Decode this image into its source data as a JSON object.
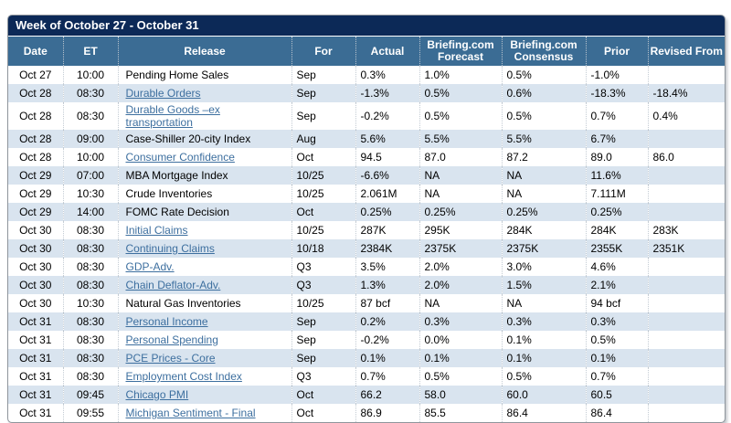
{
  "title": "Week of October 27 - October 31",
  "columns": [
    "Date",
    "ET",
    "Release",
    "For",
    "Actual",
    "Briefing.com Forecast",
    "Briefing.com Consensus",
    "Prior",
    "Revised From"
  ],
  "colors": {
    "title_bar": "#0c2957",
    "header_bg": "#3b6c94",
    "row_alt": "#d9e4ef",
    "link": "#3d6f9f"
  },
  "rows": [
    {
      "date": "Oct 27",
      "et": "10:00",
      "release": "Pending Home Sales",
      "link": false,
      "for": "Sep",
      "actual": "0.3%",
      "forecast": "1.0%",
      "consensus": "0.5%",
      "prior": "-1.0%",
      "revised": ""
    },
    {
      "date": "Oct 28",
      "et": "08:30",
      "release": "Durable Orders",
      "link": true,
      "for": "Sep",
      "actual": "-1.3%",
      "forecast": "0.5%",
      "consensus": "0.6%",
      "prior": "-18.3%",
      "revised": "-18.4%"
    },
    {
      "date": "Oct 28",
      "et": "08:30",
      "release": "Durable Goods –ex transportation",
      "link": true,
      "for": "Sep",
      "actual": "-0.2%",
      "forecast": "0.5%",
      "consensus": "0.5%",
      "prior": "0.7%",
      "revised": "0.4%"
    },
    {
      "date": "Oct 28",
      "et": "09:00",
      "release": "Case-Shiller 20-city Index",
      "link": false,
      "for": "Aug",
      "actual": "5.6%",
      "forecast": "5.5%",
      "consensus": "5.5%",
      "prior": "6.7%",
      "revised": ""
    },
    {
      "date": "Oct 28",
      "et": "10:00",
      "release": "Consumer Confidence",
      "link": true,
      "for": "Oct",
      "actual": "94.5",
      "forecast": "87.0",
      "consensus": "87.2",
      "prior": "89.0",
      "revised": "86.0"
    },
    {
      "date": "Oct 29",
      "et": "07:00",
      "release": "MBA Mortgage Index",
      "link": false,
      "for": "10/25",
      "actual": "-6.6%",
      "forecast": "NA",
      "consensus": "NA",
      "prior": "11.6%",
      "revised": ""
    },
    {
      "date": "Oct 29",
      "et": "10:30",
      "release": "Crude Inventories",
      "link": false,
      "for": "10/25",
      "actual": "2.061M",
      "forecast": "NA",
      "consensus": "NA",
      "prior": "7.111M",
      "revised": ""
    },
    {
      "date": "Oct 29",
      "et": "14:00",
      "release": "FOMC Rate Decision",
      "link": false,
      "for": "Oct",
      "actual": "0.25%",
      "forecast": "0.25%",
      "consensus": "0.25%",
      "prior": "0.25%",
      "revised": ""
    },
    {
      "date": "Oct 30",
      "et": "08:30",
      "release": "Initial Claims",
      "link": true,
      "for": "10/25",
      "actual": "287K",
      "forecast": "295K",
      "consensus": "284K",
      "prior": "284K",
      "revised": "283K"
    },
    {
      "date": "Oct 30",
      "et": "08:30",
      "release": "Continuing Claims",
      "link": true,
      "for": "10/18",
      "actual": "2384K",
      "forecast": "2375K",
      "consensus": "2375K",
      "prior": "2355K",
      "revised": "2351K"
    },
    {
      "date": "Oct 30",
      "et": "08:30",
      "release": "GDP-Adv.",
      "link": true,
      "for": "Q3",
      "actual": "3.5%",
      "forecast": "2.0%",
      "consensus": "3.0%",
      "prior": "4.6%",
      "revised": ""
    },
    {
      "date": "Oct 30",
      "et": "08:30",
      "release": "Chain Deflator-Adv.",
      "link": true,
      "for": "Q3",
      "actual": "1.3%",
      "forecast": "2.0%",
      "consensus": "1.5%",
      "prior": "2.1%",
      "revised": ""
    },
    {
      "date": "Oct 30",
      "et": "10:30",
      "release": "Natural Gas Inventories",
      "link": false,
      "for": "10/25",
      "actual": "87 bcf",
      "forecast": "NA",
      "consensus": "NA",
      "prior": "94 bcf",
      "revised": ""
    },
    {
      "date": "Oct 31",
      "et": "08:30",
      "release": "Personal Income",
      "link": true,
      "for": "Sep",
      "actual": "0.2%",
      "forecast": "0.3%",
      "consensus": "0.3%",
      "prior": "0.3%",
      "revised": ""
    },
    {
      "date": "Oct 31",
      "et": "08:30",
      "release": "Personal Spending",
      "link": true,
      "for": "Sep",
      "actual": "-0.2%",
      "forecast": "0.0%",
      "consensus": "0.1%",
      "prior": "0.5%",
      "revised": ""
    },
    {
      "date": "Oct 31",
      "et": "08:30",
      "release": "PCE Prices - Core",
      "link": true,
      "for": "Sep",
      "actual": "0.1%",
      "forecast": "0.1%",
      "consensus": "0.1%",
      "prior": "0.1%",
      "revised": ""
    },
    {
      "date": "Oct 31",
      "et": "08:30",
      "release": "Employment Cost Index",
      "link": true,
      "for": "Q3",
      "actual": "0.7%",
      "forecast": "0.5%",
      "consensus": "0.5%",
      "prior": "0.7%",
      "revised": ""
    },
    {
      "date": "Oct 31",
      "et": "09:45",
      "release": "Chicago PMI",
      "link": true,
      "for": "Oct",
      "actual": "66.2",
      "forecast": "58.0",
      "consensus": "60.0",
      "prior": "60.5",
      "revised": ""
    },
    {
      "date": "Oct 31",
      "et": "09:55",
      "release": "Michigan Sentiment - Final",
      "link": true,
      "for": "Oct",
      "actual": "86.9",
      "forecast": "85.5",
      "consensus": "86.4",
      "prior": "86.4",
      "revised": ""
    }
  ]
}
